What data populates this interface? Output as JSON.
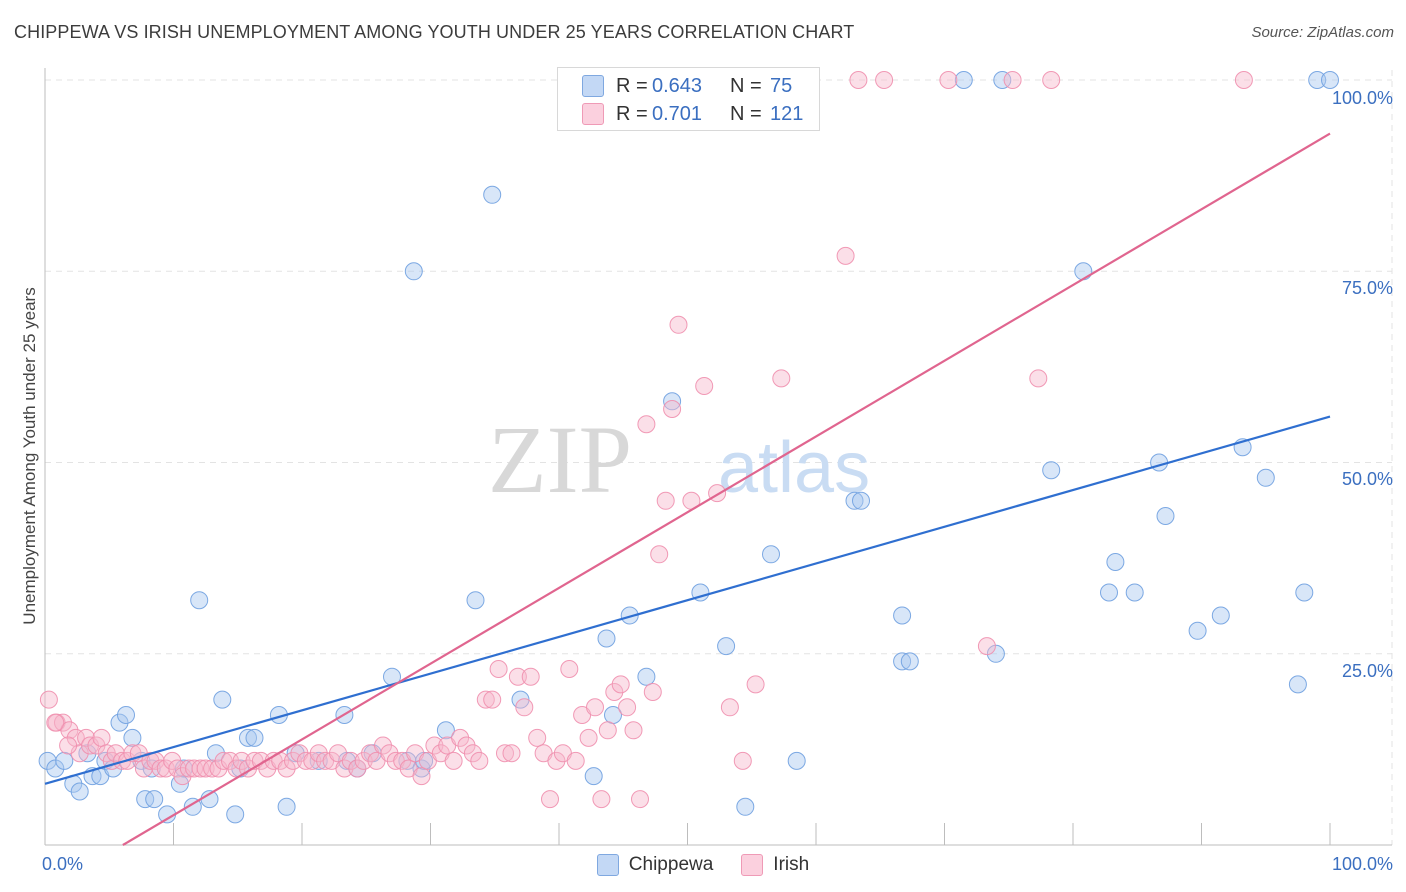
{
  "header": {
    "title": "CHIPPEWA VS IRISH UNEMPLOYMENT AMONG YOUTH UNDER 25 YEARS CORRELATION CHART",
    "source": "Source: ZipAtlas.com"
  },
  "watermark": {
    "zip": "ZIP",
    "atlas": "atlas"
  },
  "legend": {
    "r_label": "R =",
    "n_label": "N =",
    "rows": [
      {
        "name": "Chippewa",
        "r": "0.643",
        "n": "75",
        "color": "#a9c7f0"
      },
      {
        "name": "Irish",
        "r": "0.701",
        "n": "121",
        "color": "#f7b8cb"
      }
    ]
  },
  "chart_data": {
    "type": "scatter",
    "title": "CHIPPEWA VS IRISH UNEMPLOYMENT AMONG YOUTH UNDER 25 YEARS CORRELATION CHART",
    "xlabel": "",
    "ylabel": "Unemployment Among Youth under 25 years",
    "xlim": [
      0,
      100
    ],
    "ylim": [
      0,
      100
    ],
    "x_tick_labels": [
      "0.0%",
      "100.0%"
    ],
    "y_tick_labels": [
      "25.0%",
      "50.0%",
      "75.0%",
      "100.0%"
    ],
    "y_ticks": [
      25,
      50,
      75,
      100
    ],
    "grid": true,
    "series": [
      {
        "name": "Chippewa",
        "color": "#6fa0e0",
        "fill": "#a9c7f0",
        "trend": {
          "color": "#2f6fd0",
          "x": [
            0,
            100
          ],
          "y": [
            8,
            56
          ]
        },
        "points": [
          [
            0.2,
            11
          ],
          [
            0.8,
            10
          ],
          [
            1.5,
            11
          ],
          [
            2.2,
            8
          ],
          [
            2.7,
            7
          ],
          [
            3.3,
            12
          ],
          [
            3.7,
            9
          ],
          [
            4.3,
            9
          ],
          [
            4.7,
            11
          ],
          [
            5.3,
            10
          ],
          [
            5.8,
            16
          ],
          [
            6.3,
            17
          ],
          [
            6.8,
            14
          ],
          [
            7.5,
            11
          ],
          [
            7.8,
            6
          ],
          [
            8.5,
            6
          ],
          [
            8.3,
            10
          ],
          [
            9.5,
            4
          ],
          [
            10.5,
            8
          ],
          [
            10.8,
            10
          ],
          [
            11.5,
            5
          ],
          [
            12.0,
            32
          ],
          [
            12.8,
            6
          ],
          [
            13.3,
            12
          ],
          [
            13.8,
            19
          ],
          [
            14.8,
            4
          ],
          [
            15.2,
            10
          ],
          [
            15.8,
            14
          ],
          [
            16.3,
            14
          ],
          [
            18.2,
            17
          ],
          [
            18.8,
            5
          ],
          [
            19.5,
            12
          ],
          [
            21.3,
            11
          ],
          [
            23.3,
            17
          ],
          [
            23.5,
            11
          ],
          [
            24.3,
            10
          ],
          [
            25.5,
            12
          ],
          [
            27.0,
            22
          ],
          [
            28.2,
            11
          ],
          [
            28.7,
            75
          ],
          [
            29.3,
            10
          ],
          [
            29.5,
            11
          ],
          [
            31.2,
            15
          ],
          [
            33.5,
            32
          ],
          [
            34.8,
            85
          ],
          [
            37.0,
            19
          ],
          [
            42.7,
            9
          ],
          [
            43.7,
            27
          ],
          [
            44.2,
            17
          ],
          [
            45.5,
            30
          ],
          [
            46.8,
            22
          ],
          [
            48.8,
            58
          ],
          [
            51.0,
            33
          ],
          [
            53.0,
            26
          ],
          [
            54.5,
            5
          ],
          [
            56.5,
            38
          ],
          [
            58.5,
            11
          ],
          [
            63.0,
            45
          ],
          [
            63.5,
            45
          ],
          [
            66.7,
            30
          ],
          [
            66.7,
            24
          ],
          [
            67.3,
            24
          ],
          [
            71.5,
            100
          ],
          [
            74.0,
            25
          ],
          [
            74.5,
            100
          ],
          [
            78.3,
            49
          ],
          [
            80.8,
            75
          ],
          [
            82.8,
            33
          ],
          [
            83.3,
            37
          ],
          [
            84.8,
            33
          ],
          [
            86.7,
            50
          ],
          [
            87.2,
            43
          ],
          [
            89.7,
            28
          ],
          [
            91.5,
            30
          ],
          [
            93.2,
            52
          ],
          [
            95.0,
            48
          ],
          [
            97.5,
            21
          ],
          [
            98.0,
            33
          ],
          [
            99.0,
            100
          ],
          [
            100.0,
            100
          ]
        ]
      },
      {
        "name": "Irish",
        "color": "#ef8fae",
        "fill": "#f7b8cb",
        "trend": {
          "color": "#e0658f",
          "x": [
            0,
            100
          ],
          "y": [
            -6,
            93
          ]
        },
        "points": [
          [
            0.3,
            19
          ],
          [
            0.9,
            16
          ],
          [
            1.4,
            16
          ],
          [
            1.9,
            15
          ],
          [
            2.4,
            14
          ],
          [
            2.7,
            12
          ],
          [
            3.2,
            14
          ],
          [
            3.5,
            13
          ],
          [
            4.0,
            13
          ],
          [
            4.4,
            14
          ],
          [
            4.8,
            12
          ],
          [
            5.2,
            11
          ],
          [
            5.5,
            12
          ],
          [
            6.0,
            11
          ],
          [
            6.4,
            11
          ],
          [
            6.8,
            12
          ],
          [
            7.3,
            12
          ],
          [
            7.7,
            10
          ],
          [
            8.2,
            11
          ],
          [
            8.6,
            11
          ],
          [
            9.0,
            10
          ],
          [
            9.4,
            10
          ],
          [
            9.9,
            11
          ],
          [
            10.3,
            10
          ],
          [
            10.7,
            9
          ],
          [
            11.2,
            10
          ],
          [
            11.6,
            10
          ],
          [
            12.1,
            10
          ],
          [
            12.5,
            10
          ],
          [
            13.0,
            10
          ],
          [
            13.5,
            10
          ],
          [
            13.9,
            11
          ],
          [
            14.4,
            11
          ],
          [
            14.9,
            10
          ],
          [
            15.3,
            11
          ],
          [
            15.8,
            10
          ],
          [
            16.3,
            11
          ],
          [
            16.8,
            11
          ],
          [
            17.3,
            10
          ],
          [
            17.8,
            11
          ],
          [
            18.3,
            11
          ],
          [
            18.8,
            10
          ],
          [
            19.3,
            11
          ],
          [
            19.8,
            12
          ],
          [
            20.3,
            11
          ],
          [
            20.8,
            11
          ],
          [
            21.3,
            12
          ],
          [
            21.8,
            11
          ],
          [
            22.3,
            11
          ],
          [
            22.8,
            12
          ],
          [
            23.3,
            10
          ],
          [
            23.8,
            11
          ],
          [
            24.3,
            10
          ],
          [
            24.8,
            11
          ],
          [
            25.3,
            12
          ],
          [
            25.8,
            11
          ],
          [
            26.3,
            13
          ],
          [
            26.8,
            12
          ],
          [
            27.3,
            11
          ],
          [
            27.8,
            11
          ],
          [
            28.3,
            10
          ],
          [
            28.8,
            12
          ],
          [
            29.3,
            9
          ],
          [
            29.8,
            11
          ],
          [
            30.3,
            13
          ],
          [
            30.8,
            12
          ],
          [
            31.3,
            13
          ],
          [
            31.8,
            11
          ],
          [
            32.3,
            14
          ],
          [
            32.8,
            13
          ],
          [
            33.3,
            12
          ],
          [
            33.8,
            11
          ],
          [
            34.3,
            19
          ],
          [
            34.8,
            19
          ],
          [
            35.3,
            23
          ],
          [
            35.8,
            12
          ],
          [
            36.3,
            12
          ],
          [
            36.8,
            22
          ],
          [
            37.3,
            18
          ],
          [
            37.8,
            22
          ],
          [
            38.3,
            14
          ],
          [
            38.8,
            12
          ],
          [
            39.3,
            6
          ],
          [
            39.8,
            11
          ],
          [
            40.3,
            12
          ],
          [
            40.8,
            23
          ],
          [
            41.3,
            11
          ],
          [
            41.8,
            17
          ],
          [
            42.3,
            14
          ],
          [
            42.8,
            18
          ],
          [
            43.3,
            6
          ],
          [
            43.8,
            15
          ],
          [
            44.3,
            20
          ],
          [
            44.8,
            21
          ],
          [
            45.3,
            18
          ],
          [
            45.8,
            15
          ],
          [
            46.3,
            6
          ],
          [
            46.8,
            55
          ],
          [
            47.3,
            20
          ],
          [
            47.8,
            38
          ],
          [
            48.3,
            45
          ],
          [
            48.8,
            57
          ],
          [
            49.3,
            68
          ],
          [
            50.3,
            45
          ],
          [
            51.3,
            60
          ],
          [
            52.3,
            46
          ],
          [
            53.3,
            18
          ],
          [
            54.3,
            11
          ],
          [
            55.3,
            21
          ],
          [
            57.3,
            61
          ],
          [
            62.3,
            77
          ],
          [
            63.3,
            100
          ],
          [
            65.3,
            100
          ],
          [
            70.3,
            100
          ],
          [
            73.3,
            26
          ],
          [
            75.3,
            100
          ],
          [
            77.3,
            61
          ],
          [
            78.3,
            100
          ],
          [
            93.3,
            100
          ],
          [
            0.8,
            16
          ],
          [
            1.8,
            13
          ]
        ]
      }
    ]
  }
}
